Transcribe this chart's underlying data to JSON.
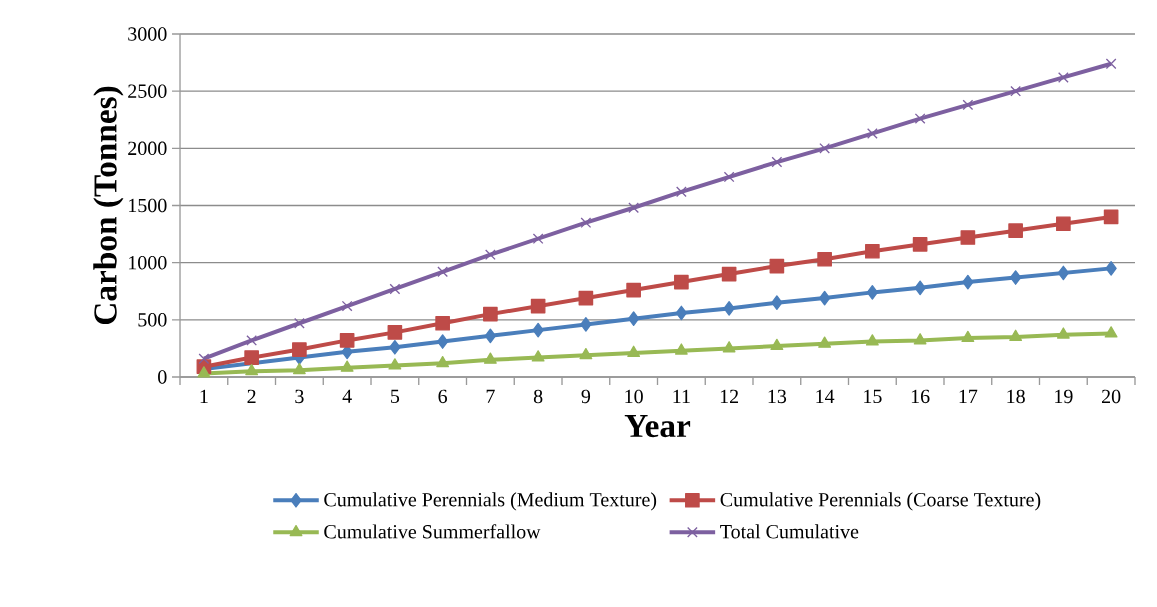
{
  "chart_data": {
    "type": "line",
    "xlabel": "Year",
    "ylabel": "Carbon (Tonnes)",
    "categories": [
      "1",
      "2",
      "3",
      "4",
      "5",
      "6",
      "7",
      "8",
      "9",
      "10",
      "11",
      "12",
      "13",
      "14",
      "15",
      "16",
      "17",
      "18",
      "19",
      "20"
    ],
    "series": [
      {
        "name": "Cumulative Perennials (Medium Texture)",
        "color": "#4a7ebb",
        "marker": "diamond",
        "values": [
          70,
          null,
          170,
          220,
          260,
          310,
          360,
          410,
          460,
          510,
          560,
          600,
          650,
          690,
          740,
          780,
          830,
          870,
          910,
          950
        ]
      },
      {
        "name": "Cumulative Perennials (Coarse Texture)",
        "color": "#be4b48",
        "marker": "square",
        "values": [
          90,
          170,
          240,
          320,
          390,
          470,
          550,
          620,
          690,
          760,
          830,
          900,
          970,
          1030,
          1100,
          1160,
          1220,
          1280,
          1340,
          1400
        ]
      },
      {
        "name": "Cumulative Summerfallow",
        "color": "#98b954",
        "marker": "triangle",
        "values": [
          30,
          50,
          60,
          80,
          100,
          120,
          150,
          170,
          190,
          210,
          230,
          250,
          270,
          290,
          310,
          320,
          340,
          350,
          370,
          380
        ]
      },
      {
        "name": "Total Cumulative",
        "color": "#7d60a0",
        "marker": "cross",
        "values": [
          160,
          320,
          470,
          620,
          770,
          920,
          1070,
          1210,
          1350,
          1480,
          1620,
          1750,
          1880,
          2000,
          2130,
          2260,
          2380,
          2500,
          2620,
          2740
        ]
      }
    ],
    "ylim": [
      0,
      3000
    ],
    "yticks": [
      0,
      500,
      1000,
      1500,
      2000,
      2500,
      3000
    ],
    "grid": "y",
    "legend": "bottom",
    "line_style": "solid"
  }
}
